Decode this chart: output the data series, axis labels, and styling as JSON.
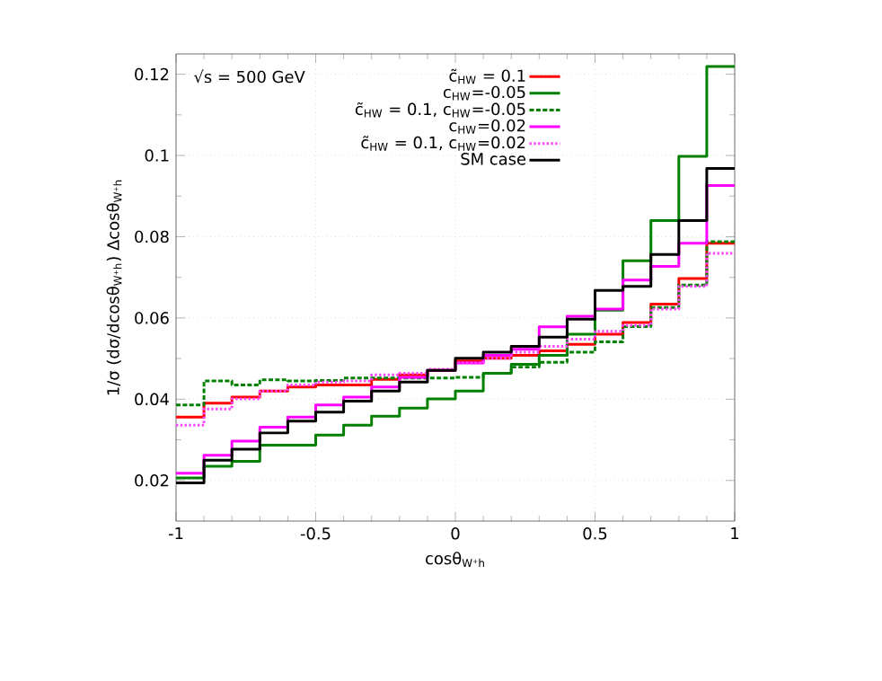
{
  "chart_data": {
    "type": "histogram",
    "xlabel": "cosθ$_{W⁺h}$",
    "ylabel": "1/σ (dσ/dcosθ$_{W⁺h}$) Δcosθ$_{W⁺h}$",
    "annotations": [
      "√s = 500 GeV"
    ],
    "bins": [
      -1,
      -0.9,
      -0.8,
      -0.7,
      -0.6,
      -0.5,
      -0.4,
      -0.3,
      -0.2,
      -0.1,
      0,
      0.1,
      0.2,
      0.3,
      0.4,
      0.5,
      0.6,
      0.7,
      0.8,
      0.9,
      1
    ],
    "series": [
      {
        "name": "c̃$_{HW}$ = 0.1",
        "color": "#ff0000",
        "values": [
          0.0356,
          0.039,
          0.0405,
          0.042,
          0.043,
          0.0435,
          0.0435,
          0.0449,
          0.046,
          0.0471,
          0.0494,
          0.0501,
          0.0508,
          0.0519,
          0.0535,
          0.056,
          0.0589,
          0.0634,
          0.0697,
          0.0784
        ]
      },
      {
        "name": "c$_{HW}$=-0.05",
        "color": "#008000",
        "values": [
          0.0206,
          0.0235,
          0.0247,
          0.0287,
          0.0287,
          0.0312,
          0.0336,
          0.0358,
          0.0378,
          0.0401,
          0.042,
          0.0464,
          0.0486,
          0.0508,
          0.056,
          0.0619,
          0.0741,
          0.084,
          0.0998,
          0.1219
        ]
      },
      {
        "name": "c̃$_{HW}$ = 0.1, c$_{HW}$=-0.05",
        "color": "#008000",
        "line_style": "dashed",
        "values": [
          0.0386,
          0.0445,
          0.0435,
          0.0448,
          0.0445,
          0.0446,
          0.0452,
          0.0452,
          0.0452,
          0.0452,
          0.0454,
          0.0464,
          0.0479,
          0.0491,
          0.0516,
          0.0541,
          0.0579,
          0.0626,
          0.0681,
          0.0788
        ]
      },
      {
        "name": "c$_{HW}$=0.02",
        "color": "#ff00ff",
        "values": [
          0.0218,
          0.0262,
          0.0297,
          0.0331,
          0.0356,
          0.0386,
          0.0405,
          0.043,
          0.0454,
          0.0471,
          0.0489,
          0.0508,
          0.0523,
          0.0578,
          0.0604,
          0.0622,
          0.0693,
          0.0727,
          0.0784,
          0.0926
        ]
      },
      {
        "name": "c̃$_{HW}$ = 0.1, c$_{HW}$=0.02",
        "color": "#ff44ff",
        "line_style": "dotted",
        "values": [
          0.0336,
          0.0376,
          0.0401,
          0.042,
          0.0435,
          0.0442,
          0.0445,
          0.046,
          0.0464,
          0.0474,
          0.0489,
          0.0501,
          0.0516,
          0.053,
          0.0548,
          0.0567,
          0.0582,
          0.0622,
          0.0678,
          0.0759
        ]
      },
      {
        "name": "SM case",
        "color": "#000000",
        "values": [
          0.0194,
          0.025,
          0.0277,
          0.0317,
          0.0346,
          0.0368,
          0.0395,
          0.042,
          0.0442,
          0.0471,
          0.0501,
          0.0516,
          0.053,
          0.0553,
          0.0597,
          0.0668,
          0.0678,
          0.0756,
          0.084,
          0.0968
        ]
      }
    ],
    "xlim": [
      -1,
      1
    ],
    "ylim": [
      0.01,
      0.125
    ],
    "xticks": [
      -1,
      -0.5,
      0,
      0.5,
      1
    ],
    "yticks": [
      0.02,
      0.04,
      0.06,
      0.08,
      0.1,
      0.12
    ],
    "grid": true,
    "legend": "top right"
  }
}
